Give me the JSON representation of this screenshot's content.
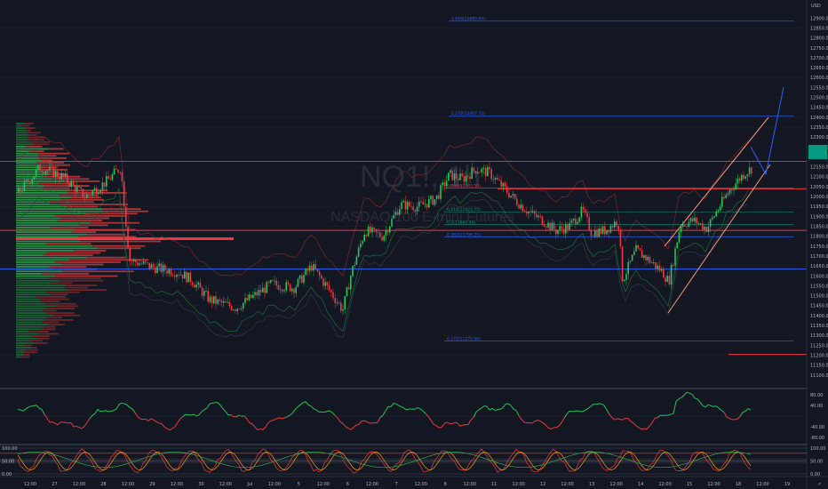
{
  "chart_data": {
    "type": "candlestick",
    "symbol_watermark": "NQ1!, 1h",
    "description_watermark": "NASDAQ 100 E-mini Futures",
    "currency": "USD",
    "price_axis": {
      "range": [
        11080,
        12980
      ],
      "ticks": [
        12900,
        12850,
        12800,
        12750,
        12700,
        12650,
        12600,
        12550,
        12500,
        12450,
        12400,
        12350,
        12300,
        12250,
        12200,
        12150,
        12100,
        12050,
        12000,
        11950,
        11900,
        11850,
        11800,
        11750,
        11700,
        11650,
        11600,
        11550,
        11500,
        11450,
        11400,
        11350,
        11300,
        11250,
        11200,
        11150,
        11100
      ],
      "tick_labels": [
        "12900.00",
        "12850.00",
        "12800.00",
        "12750.00",
        "12700.00",
        "12650.00",
        "12600.00",
        "12550.00",
        "12500.00",
        "12450.00",
        "12400.00",
        "12350.00",
        "12300.00",
        "12250.00",
        "12200.00",
        "12150.00",
        "12100.00",
        "12050.00",
        "12000.00",
        "11950.00",
        "11900.00",
        "11850.00",
        "11800.00",
        "11750.00",
        "11700.00",
        "11650.00",
        "11600.00",
        "11550.00",
        "11500.00",
        "11450.00",
        "11400.00",
        "11350.00",
        "11300.00",
        "11250.00",
        "11200.00",
        "11150.00",
        "11100.00"
      ],
      "last_price_label": "12143.00",
      "last_price_sublabel": "43:57"
    },
    "time_axis": {
      "labels": [
        "12:00",
        "27",
        "12:00",
        "28",
        "12:00",
        "29",
        "12:00",
        "30",
        "12:00",
        "Jul",
        "12:00",
        "5",
        "12:00",
        "6",
        "12:00",
        "7",
        "12:00",
        "8",
        "12:00",
        "11",
        "12:00",
        "12",
        "12:00",
        "13",
        "12:00",
        "14",
        "12:00",
        "15",
        "12:00",
        "18",
        "12:00",
        "19"
      ]
    },
    "horizontal_levels": [
      {
        "price": 12178,
        "color": "#2962ff"
      },
      {
        "price": 11830,
        "color": "#f23645"
      },
      {
        "price": 11635,
        "color": "#2962ff"
      },
      {
        "price": 12040,
        "color": "#f23645"
      },
      {
        "price": 11205,
        "color": "#f23645"
      }
    ],
    "fib_levels": [
      {
        "label": "1.618(12885.00)",
        "price": 12885,
        "color": "#2962ff"
      },
      {
        "label": "1.272(12407.75)",
        "price": 12407.75,
        "color": "#2962ff"
      },
      {
        "label": "0.786(12043.50)",
        "price": 12043.5,
        "color": "#f23645"
      },
      {
        "label": "0.618(11923.75)",
        "price": 11923.75,
        "color": "#089981"
      },
      {
        "label": "0.5(11860.00)",
        "price": 11860,
        "color": "#089981"
      },
      {
        "label": "0.382(11796.25)",
        "price": 11796.25,
        "color": "#2962ff"
      },
      {
        "label": "0.272(11272.50)",
        "price": 11272.5,
        "color": "#2962ff"
      }
    ],
    "rsi_panel": {
      "ticks": [
        80,
        40,
        -40,
        -80
      ],
      "tick_labels": [
        "80.00",
        "40.00",
        "-40.00",
        "-80.00"
      ]
    },
    "stoch_panel": {
      "ticks": [
        100,
        50,
        0
      ],
      "tick_labels_left": [
        "100.00",
        "50.00",
        "0.00"
      ],
      "tick_labels_right": [
        "100.00",
        "50.00",
        "0.00"
      ]
    }
  },
  "colors": {
    "background": "#131722",
    "bull": "#089981",
    "bull_bright": "#22c55e",
    "bear": "#f23645",
    "blue": "#2962ff",
    "grid": "#1e222d"
  }
}
